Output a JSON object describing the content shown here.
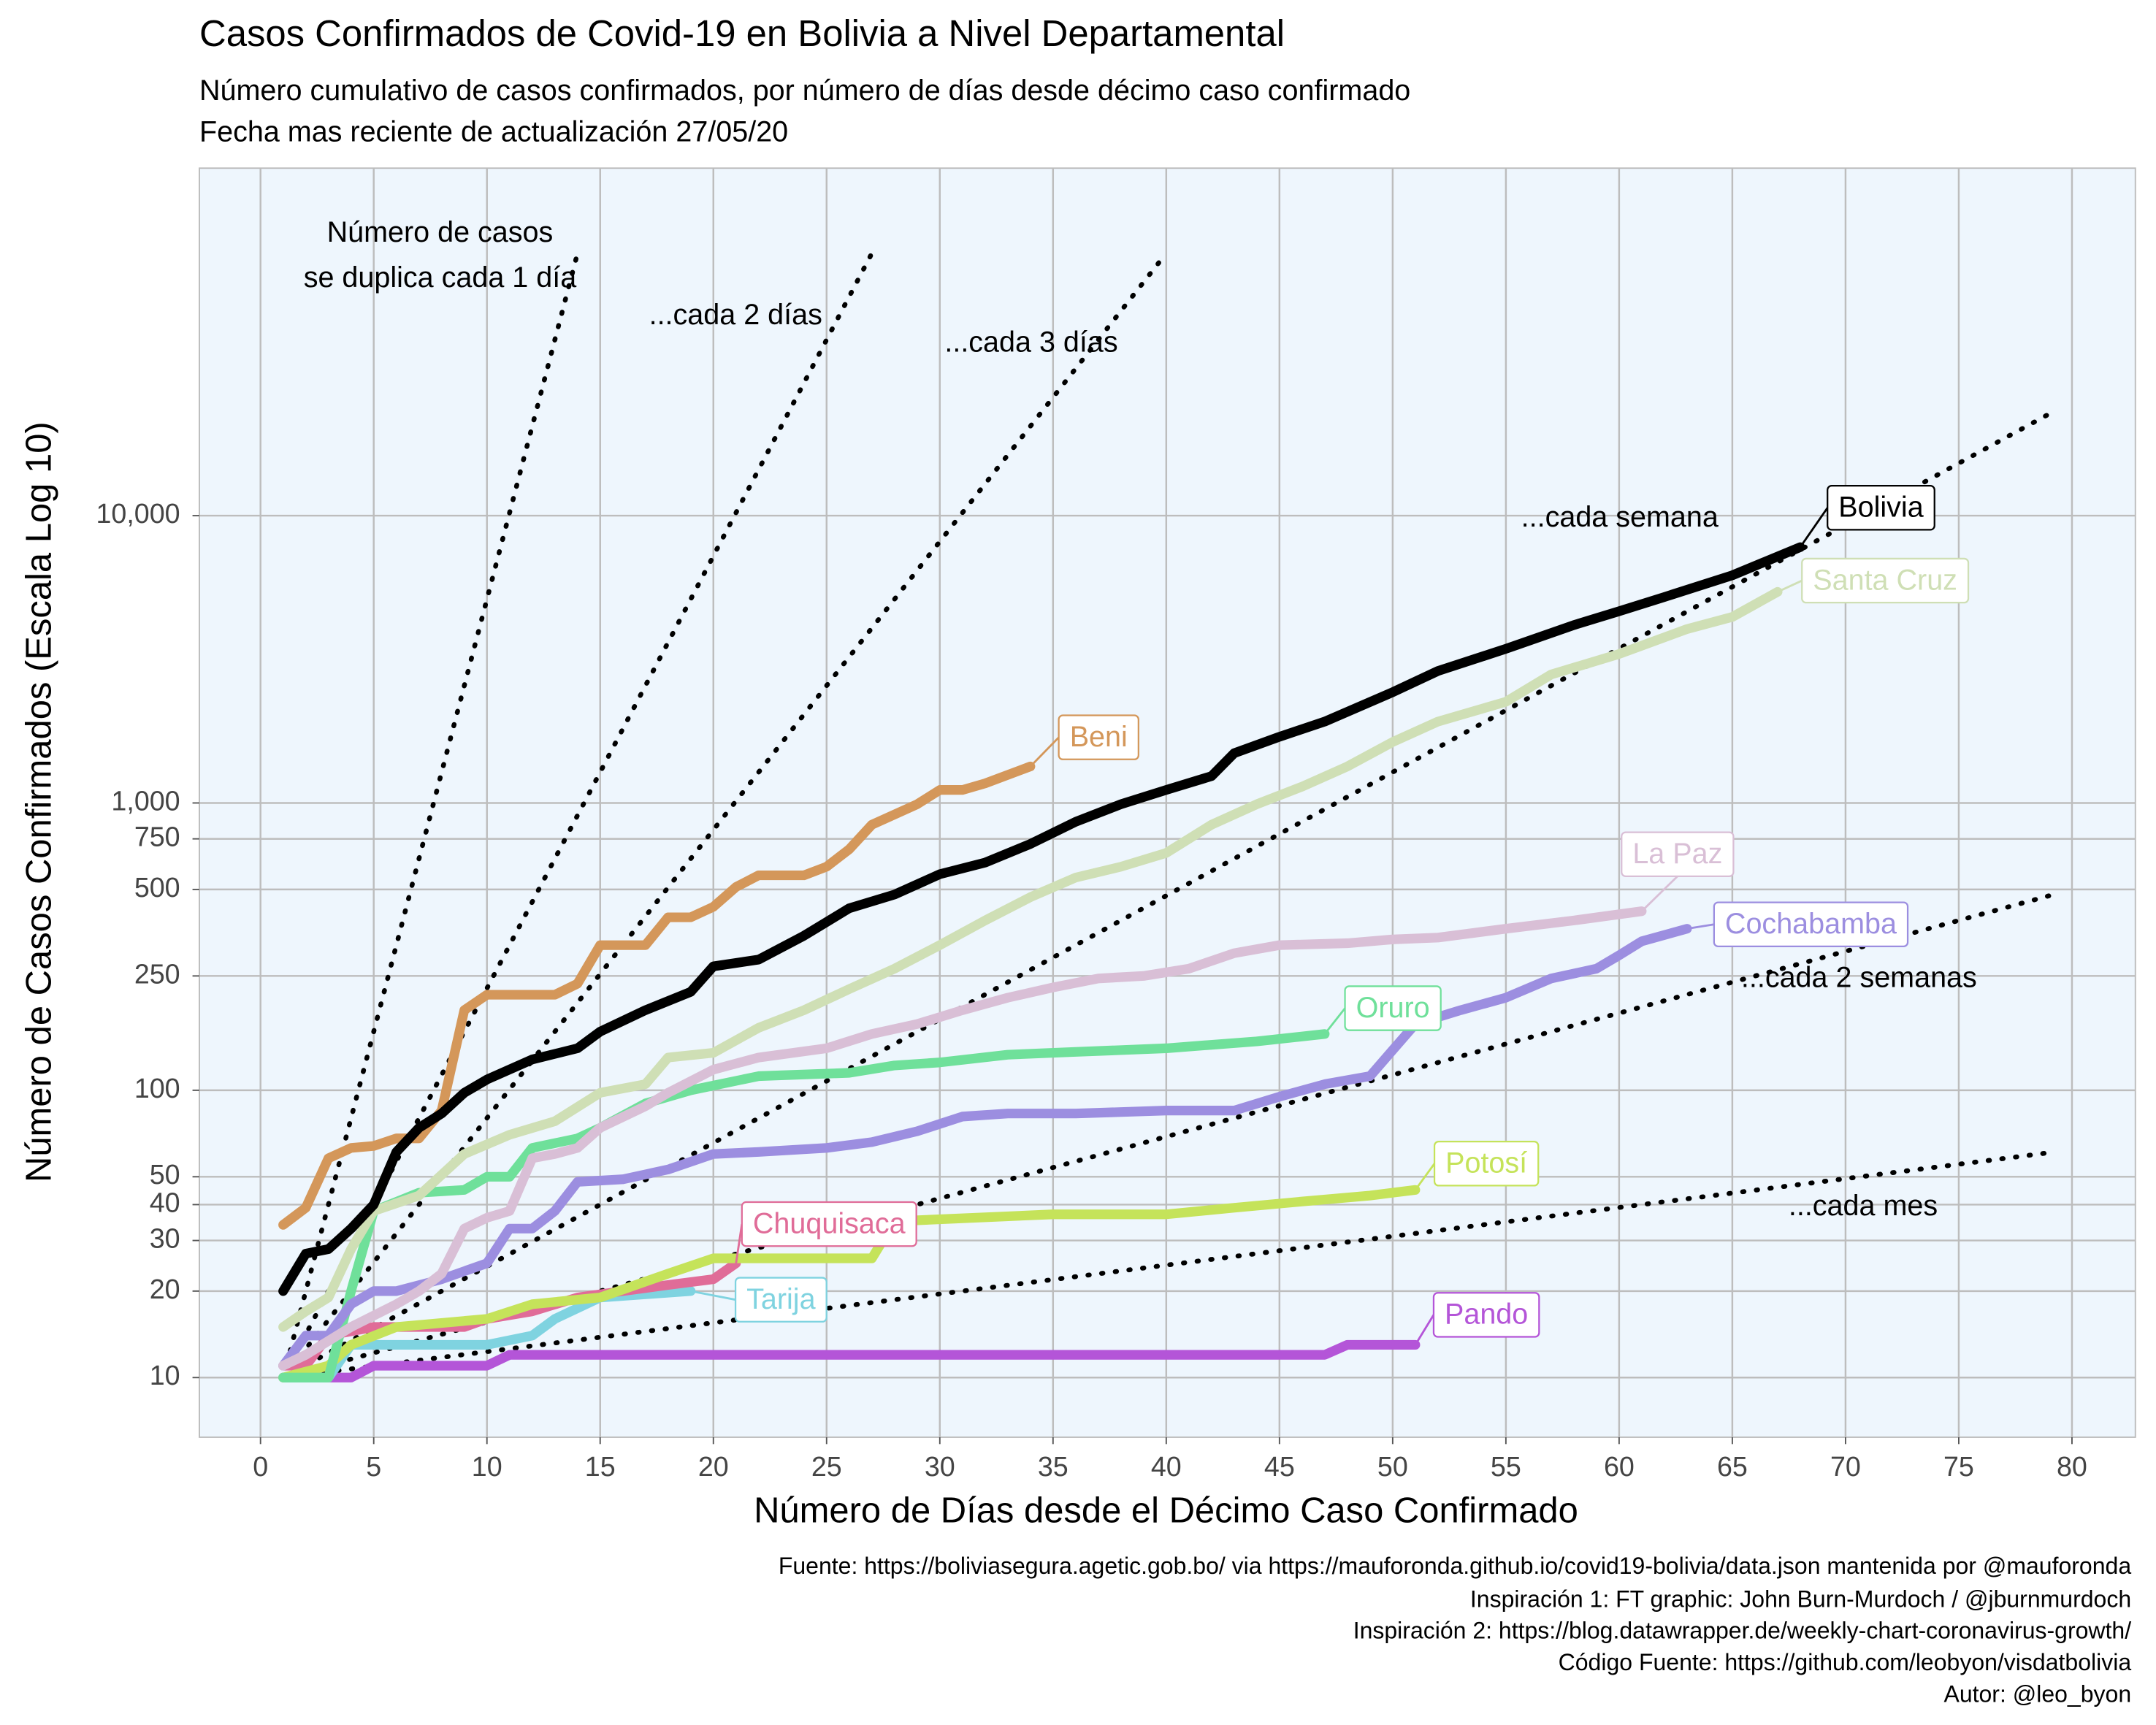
{
  "chart_data": {
    "type": "line",
    "title": "Casos Confirmados de Covid-19 en Bolivia a Nivel Departamental",
    "subtitle": [
      "Número cumulativo de casos confirmados, por número de días desde décimo caso confirmado",
      "Fecha mas reciente de actualización 27/05/20"
    ],
    "x_label": "Número de Días desde el Décimo Caso Confirmado",
    "y_label": "Número de Casos Confirmados (Escala Log 10)",
    "caption": [
      "Fuente: https://boliviasegura.agetic.gob.bo/ via https://mauforonda.github.io/covid19-bolivia/data.json mantenida por @mauforonda",
      "Inspiración 1: FT graphic: John Burn-Murdoch / @jburnmurdoch",
      "Inspiración 2: https://blog.datawrapper.de/weekly-chart-coronavirus-growth/",
      "Código Fuente: https://github.com/leobyon/visdatbolivia",
      "Autor: @leo_byon"
    ],
    "y_log": true,
    "grid": true,
    "xlim": [
      -2.7,
      82.8
    ],
    "ylim": [
      6.2,
      162000
    ],
    "xticks": [
      0,
      5,
      10,
      15,
      20,
      25,
      30,
      35,
      40,
      45,
      50,
      55,
      60,
      65,
      70,
      75,
      80
    ],
    "yticks": [
      10,
      20,
      30,
      40,
      50,
      100,
      250,
      500,
      750,
      {
        "value": 1000,
        "label": "1,000"
      },
      {
        "value": 10000,
        "label": "10,000"
      }
    ],
    "reference_lines": [
      {
        "label": [
          "Número de casos",
          "se duplica cada 1 día"
        ],
        "days": 1,
        "x_start": 1,
        "y_start": 10,
        "x_end": 14
      },
      {
        "label": [
          "...cada 2 días"
        ],
        "days": 2,
        "x_start": 1,
        "y_start": 10,
        "x_end": 27
      },
      {
        "label": [
          "...cada 3 días"
        ],
        "days": 3,
        "x_start": 1,
        "y_start": 10,
        "x_end": 40
      },
      {
        "label": [
          "...cada semana"
        ],
        "days": 7,
        "x_start": 1,
        "y_start": 10,
        "x_end": 79
      },
      {
        "label": [
          "...cada 2 semanas"
        ],
        "days": 14,
        "x_start": 1,
        "y_start": 10,
        "x_end": 79
      },
      {
        "label": [
          "...cada mes"
        ],
        "days": 30,
        "x_start": 1,
        "y_start": 10,
        "x_end": 79
      }
    ],
    "series": [
      {
        "name": "Bolivia",
        "color": "#000000",
        "x": [
          1,
          2,
          3,
          4,
          5,
          6,
          7,
          8,
          9,
          10,
          12,
          14,
          15,
          17,
          19,
          20,
          22,
          24,
          26,
          28,
          30,
          32,
          34,
          36,
          38,
          40,
          42,
          43,
          45,
          47,
          50,
          52,
          55,
          58,
          60,
          62,
          65,
          68
        ],
        "values": [
          20,
          27,
          28,
          33,
          40,
          61,
          74,
          83,
          98,
          109,
          128,
          140,
          160,
          190,
          220,
          270,
          285,
          345,
          430,
          480,
          565,
          620,
          720,
          860,
          990,
          1110,
          1240,
          1490,
          1700,
          1920,
          2430,
          2880,
          3440,
          4160,
          4650,
          5210,
          6200,
          7770
        ]
      },
      {
        "name": "Santa Cruz",
        "color": "#cfdfb5",
        "x": [
          1,
          2,
          3,
          4,
          5,
          7,
          9,
          11,
          13,
          15,
          17,
          18,
          20,
          22,
          24,
          26,
          28,
          30,
          32,
          34,
          36,
          38,
          40,
          42,
          44,
          46,
          48,
          50,
          52,
          55,
          57,
          60,
          63,
          65,
          67
        ],
        "values": [
          15,
          17,
          19,
          28,
          38,
          43,
          60,
          70,
          78,
          98,
          105,
          130,
          135,
          165,
          190,
          225,
          265,
          320,
          390,
          470,
          550,
          600,
          670,
          840,
          990,
          1140,
          1340,
          1630,
          1920,
          2250,
          2800,
          3300,
          4030,
          4440,
          5430
        ]
      },
      {
        "name": "Beni",
        "color": "#d4975a",
        "x": [
          1,
          2,
          3,
          4,
          5,
          6,
          7,
          8,
          9,
          10,
          13,
          14,
          15,
          17,
          18,
          19,
          20,
          21,
          22,
          24,
          25,
          26,
          27,
          29,
          30,
          31,
          32,
          34
        ],
        "values": [
          34,
          39,
          58,
          63,
          64,
          68,
          68,
          85,
          190,
          215,
          215,
          235,
          320,
          320,
          400,
          400,
          435,
          510,
          560,
          560,
          600,
          690,
          840,
          990,
          1110,
          1110,
          1170,
          1340
        ]
      },
      {
        "name": "La Paz",
        "color": "#d9bfd6",
        "x": [
          1,
          2,
          4,
          6,
          7,
          8,
          9,
          10,
          11,
          12,
          13,
          14,
          15,
          17,
          18,
          20,
          22,
          25,
          27,
          29,
          31,
          33,
          35,
          37,
          39,
          41,
          43,
          45,
          48,
          50,
          52,
          55,
          58,
          61
        ],
        "values": [
          11,
          12,
          15,
          18,
          20,
          23,
          33,
          36,
          38,
          58,
          60,
          63,
          74,
          88,
          98,
          118,
          130,
          140,
          157,
          170,
          190,
          210,
          228,
          245,
          250,
          265,
          300,
          320,
          325,
          335,
          340,
          365,
          390,
          420
        ]
      },
      {
        "name": "Cochabamba",
        "color": "#9c8ee0",
        "x": [
          1,
          2,
          3,
          4,
          5,
          6,
          8,
          10,
          11,
          12,
          13,
          14,
          16,
          18,
          20,
          22,
          25,
          27,
          29,
          31,
          33,
          36,
          40,
          43,
          45,
          47,
          49,
          51,
          53,
          55,
          57,
          59,
          60,
          61,
          63
        ],
        "values": [
          11,
          14,
          14,
          18,
          20,
          20,
          22,
          25,
          33,
          33,
          38,
          48,
          49,
          53,
          60,
          61,
          63,
          66,
          72,
          81,
          83,
          83,
          85,
          85,
          95,
          105,
          112,
          170,
          190,
          210,
          245,
          265,
          295,
          330,
          365
        ]
      },
      {
        "name": "Oruro",
        "color": "#6fe09a",
        "x": [
          1,
          3,
          4,
          5,
          7,
          9,
          10,
          11,
          12,
          14,
          15,
          17,
          19,
          22,
          26,
          28,
          30,
          33,
          36,
          40,
          44,
          47
        ],
        "values": [
          10,
          10,
          20,
          38,
          44,
          45,
          50,
          50,
          63,
          68,
          74,
          90,
          100,
          112,
          115,
          122,
          125,
          133,
          136,
          140,
          148,
          157
        ]
      },
      {
        "name": "Potosí",
        "color": "#c5e35a",
        "x": [
          1,
          3,
          4,
          6,
          10,
          12,
          15,
          18,
          20,
          27,
          28,
          35,
          40,
          43,
          46,
          49,
          51
        ],
        "values": [
          10,
          11,
          13,
          15,
          16,
          18,
          19,
          23,
          26,
          26,
          35,
          37,
          37,
          39,
          41,
          43,
          45
        ]
      },
      {
        "name": "Chuquisaca",
        "color": "#e06c98",
        "x": [
          1,
          2,
          3,
          5,
          9,
          10,
          12,
          14,
          16,
          18,
          20,
          21
        ],
        "values": [
          11,
          11,
          14,
          15,
          15,
          16,
          17,
          19,
          20,
          21,
          22,
          25
        ]
      },
      {
        "name": "Tarija",
        "color": "#7fd3e0",
        "x": [
          1,
          3,
          4,
          10,
          12,
          13,
          15,
          19
        ],
        "values": [
          10,
          10,
          13,
          13,
          14,
          16,
          19,
          20
        ]
      },
      {
        "name": "Pando",
        "color": "#b455d8",
        "x": [
          1,
          4,
          5,
          10,
          11,
          47,
          48,
          51
        ],
        "values": [
          10,
          10,
          11,
          11,
          12,
          12,
          13,
          13
        ]
      }
    ]
  }
}
